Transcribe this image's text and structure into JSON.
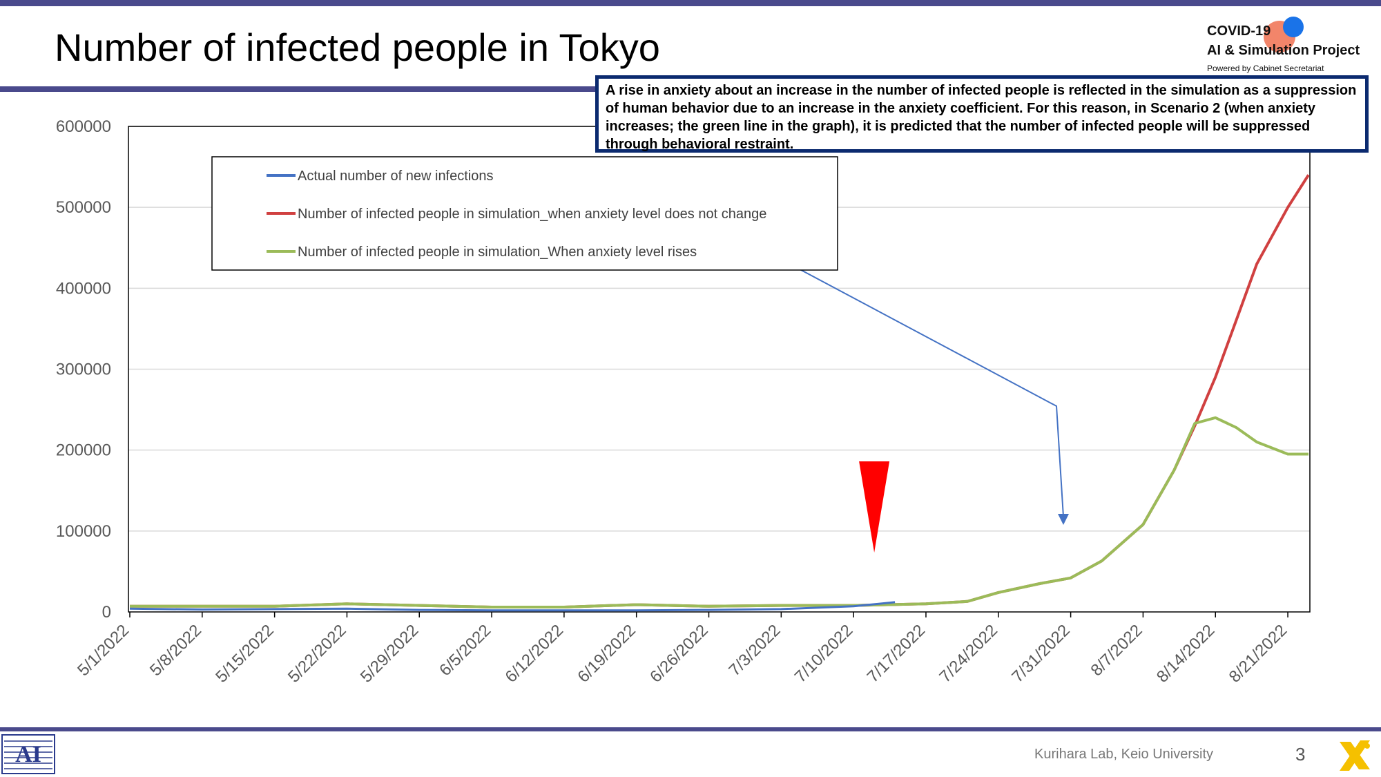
{
  "slide": {
    "title": "Number of infected people in Tokyo",
    "logo_line1": "COVID-19",
    "logo_line2": "AI & Simulation Project",
    "logo_line3": "Powered by Cabinet Secretariat",
    "note": "A rise in anxiety about an increase in the number of infected people is reflected in the simulation as a suppression of human behavior due to an increase in the anxiety coefficient. For this reason, in Scenario 2 (when anxiety increases; the green line in the graph), it is predicted that the number of infected people will be suppressed through behavioral restraint.",
    "footer": "Kurihara Lab, Keio University",
    "page_number": "3",
    "colors": {
      "accent": "#4a4a8c",
      "note_border": "#0b2a6f",
      "marker": "#ff0000",
      "arrow": "#4472c4"
    }
  },
  "chart_data": {
    "type": "line",
    "title": "",
    "xlabel": "",
    "ylabel": "",
    "ylim": [
      0,
      600000
    ],
    "yticks": [
      0,
      100000,
      200000,
      300000,
      400000,
      500000,
      600000
    ],
    "x_labels": [
      "5/1/2022",
      "5/8/2022",
      "5/15/2022",
      "5/22/2022",
      "5/29/2022",
      "6/5/2022",
      "6/12/2022",
      "6/19/2022",
      "6/26/2022",
      "7/3/2022",
      "7/10/2022",
      "7/17/2022",
      "7/24/2022",
      "7/31/2022",
      "8/7/2022",
      "8/14/2022",
      "8/21/2022"
    ],
    "grid": true,
    "legend_placement": "top-left inside plot",
    "series": [
      {
        "name": "Actual number of new infections",
        "color": "#4472c4",
        "points": [
          [
            "5/1/2022",
            4000
          ],
          [
            "5/8/2022",
            3000
          ],
          [
            "5/15/2022",
            3500
          ],
          [
            "5/22/2022",
            4000
          ],
          [
            "5/29/2022",
            2500
          ],
          [
            "6/5/2022",
            2000
          ],
          [
            "6/12/2022",
            2000
          ],
          [
            "6/19/2022",
            2000
          ],
          [
            "6/26/2022",
            2500
          ],
          [
            "7/3/2022",
            3500
          ],
          [
            "7/10/2022",
            7000
          ],
          [
            "7/14/2022",
            12000
          ]
        ]
      },
      {
        "name": "Number of infected people in simulation_when anxiety level does not change",
        "color": "#d04040",
        "points": [
          [
            "5/1/2022",
            7000
          ],
          [
            "5/8/2022",
            7000
          ],
          [
            "5/15/2022",
            7000
          ],
          [
            "5/22/2022",
            10000
          ],
          [
            "5/29/2022",
            8000
          ],
          [
            "6/5/2022",
            6000
          ],
          [
            "6/12/2022",
            6000
          ],
          [
            "6/19/2022",
            9000
          ],
          [
            "6/26/2022",
            7000
          ],
          [
            "7/3/2022",
            8000
          ],
          [
            "7/10/2022",
            8000
          ],
          [
            "7/17/2022",
            10000
          ],
          [
            "7/21/2022",
            13000
          ],
          [
            "7/24/2022",
            24000
          ],
          [
            "7/28/2022",
            35000
          ],
          [
            "7/31/2022",
            42000
          ],
          [
            "8/3/2022",
            63000
          ],
          [
            "8/7/2022",
            108000
          ],
          [
            "8/10/2022",
            175000
          ],
          [
            "8/12/2022",
            230000
          ],
          [
            "8/14/2022",
            290000
          ],
          [
            "8/16/2022",
            360000
          ],
          [
            "8/18/2022",
            430000
          ],
          [
            "8/21/2022",
            500000
          ],
          [
            "8/23/2022",
            540000
          ]
        ]
      },
      {
        "name": "Number of infected people in simulation_When anxiety level rises",
        "color": "#9bbb59",
        "points": [
          [
            "5/1/2022",
            7000
          ],
          [
            "5/8/2022",
            7000
          ],
          [
            "5/15/2022",
            7000
          ],
          [
            "5/22/2022",
            10000
          ],
          [
            "5/29/2022",
            8000
          ],
          [
            "6/5/2022",
            6000
          ],
          [
            "6/12/2022",
            6000
          ],
          [
            "6/19/2022",
            9000
          ],
          [
            "6/26/2022",
            7000
          ],
          [
            "7/3/2022",
            8000
          ],
          [
            "7/10/2022",
            8000
          ],
          [
            "7/17/2022",
            10000
          ],
          [
            "7/21/2022",
            13000
          ],
          [
            "7/24/2022",
            24000
          ],
          [
            "7/28/2022",
            35000
          ],
          [
            "7/31/2022",
            42000
          ],
          [
            "8/3/2022",
            63000
          ],
          [
            "8/7/2022",
            108000
          ],
          [
            "8/10/2022",
            175000
          ],
          [
            "8/12/2022",
            233000
          ],
          [
            "8/14/2022",
            240000
          ],
          [
            "8/16/2022",
            228000
          ],
          [
            "8/18/2022",
            210000
          ],
          [
            "8/21/2022",
            195000
          ],
          [
            "8/23/2022",
            195000
          ]
        ]
      }
    ],
    "annotations": [
      {
        "type": "down-triangle-marker",
        "date": "7/12/2022",
        "color": "#ff0000"
      },
      {
        "type": "arrow",
        "from": "legend series 3",
        "to": "7/31/2022 near 110000",
        "color": "#4472c4"
      }
    ]
  }
}
